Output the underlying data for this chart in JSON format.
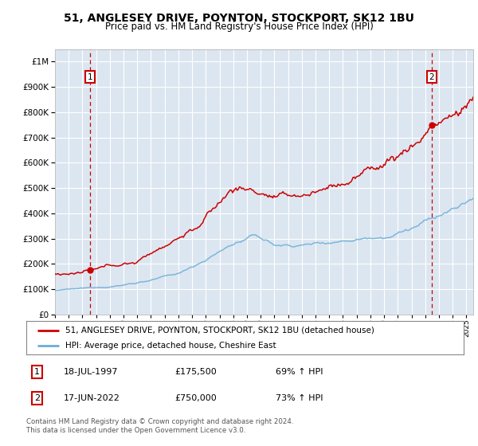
{
  "title": "51, ANGLESEY DRIVE, POYNTON, STOCKPORT, SK12 1BU",
  "subtitle": "Price paid vs. HM Land Registry's House Price Index (HPI)",
  "ytick_values": [
    0,
    100000,
    200000,
    300000,
    400000,
    500000,
    600000,
    700000,
    800000,
    900000,
    1000000
  ],
  "xlim_start": 1995.0,
  "xlim_end": 2025.5,
  "ylim": [
    0,
    1050000
  ],
  "plot_bg_color": "#dce6f1",
  "grid_color": "#ffffff",
  "hpi_color": "#6baed6",
  "price_color": "#cc0000",
  "annotation_box_color": "#cc0000",
  "sale1_x": 1997.54,
  "sale1_y": 175500,
  "sale1_label": "1",
  "sale1_date": "18-JUL-1997",
  "sale1_price": "£175,500",
  "sale1_hpi": "69% ↑ HPI",
  "sale2_x": 2022.46,
  "sale2_y": 750000,
  "sale2_label": "2",
  "sale2_date": "17-JUN-2022",
  "sale2_price": "£750,000",
  "sale2_hpi": "73% ↑ HPI",
  "legend_line1": "51, ANGLESEY DRIVE, POYNTON, STOCKPORT, SK12 1BU (detached house)",
  "legend_line2": "HPI: Average price, detached house, Cheshire East",
  "footer": "Contains HM Land Registry data © Crown copyright and database right 2024.\nThis data is licensed under the Open Government Licence v3.0."
}
